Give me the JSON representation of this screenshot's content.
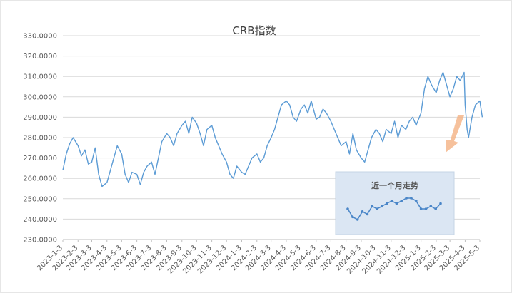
{
  "chart_data": {
    "type": "line",
    "title": "CRB指数",
    "xlabel": "",
    "ylabel": "",
    "ylim": [
      230,
      330
    ],
    "y_ticks": [
      "230.0000",
      "240.0000",
      "250.0000",
      "260.0000",
      "270.0000",
      "280.0000",
      "290.0000",
      "300.0000",
      "310.0000",
      "320.0000",
      "330.0000"
    ],
    "x_ticks": [
      "2023-1-3",
      "2023-2-3",
      "2023-3-3",
      "2023-4-3",
      "2023-5-3",
      "2023-6-3",
      "2023-7-3",
      "2023-8-3",
      "2023-9-3",
      "2023-10-3",
      "2023-11-3",
      "2023-12-3",
      "2024-1-3",
      "2024-2-3",
      "2024-3-3",
      "2024-4-3",
      "2024-5-3",
      "2024-6-3",
      "2024-7-3",
      "2024-8-3",
      "2024-9-3",
      "2024-10-3",
      "2024-11-3",
      "2024-12-3",
      "2025-1-3",
      "2025-2-3",
      "2025-3-3",
      "2025-4-3",
      "2025-5-3"
    ],
    "grid": true,
    "series": [
      {
        "color": "#5b9bd5",
        "x": [
          "2023-1-3",
          "2023-1-10",
          "2023-1-17",
          "2023-1-24",
          "2023-2-3",
          "2023-2-10",
          "2023-2-17",
          "2023-2-24",
          "2023-3-3",
          "2023-3-10",
          "2023-3-17",
          "2023-3-24",
          "2023-4-3",
          "2023-4-10",
          "2023-4-17",
          "2023-4-24",
          "2023-5-3",
          "2023-5-10",
          "2023-5-17",
          "2023-5-24",
          "2023-6-3",
          "2023-6-10",
          "2023-6-17",
          "2023-6-24",
          "2023-7-3",
          "2023-7-10",
          "2023-7-17",
          "2023-7-24",
          "2023-8-3",
          "2023-8-10",
          "2023-8-17",
          "2023-8-24",
          "2023-9-3",
          "2023-9-10",
          "2023-9-17",
          "2023-9-24",
          "2023-10-3",
          "2023-10-10",
          "2023-10-17",
          "2023-10-24",
          "2023-11-3",
          "2023-11-10",
          "2023-11-17",
          "2023-11-24",
          "2023-12-3",
          "2023-12-10",
          "2023-12-17",
          "2023-12-24",
          "2024-1-3",
          "2024-1-10",
          "2024-1-17",
          "2024-1-24",
          "2024-2-3",
          "2024-2-10",
          "2024-2-17",
          "2024-2-24",
          "2024-3-3",
          "2024-3-10",
          "2024-3-17",
          "2024-3-24",
          "2024-4-3",
          "2024-4-10",
          "2024-4-17",
          "2024-4-24",
          "2024-5-3",
          "2024-5-10",
          "2024-5-17",
          "2024-5-24",
          "2024-6-3",
          "2024-6-10",
          "2024-6-17",
          "2024-6-24",
          "2024-7-3",
          "2024-7-10",
          "2024-7-17",
          "2024-7-24",
          "2024-8-3",
          "2024-8-10",
          "2024-8-17",
          "2024-8-24",
          "2024-9-3",
          "2024-9-10",
          "2024-9-17",
          "2024-9-24",
          "2024-10-3",
          "2024-10-10",
          "2024-10-17",
          "2024-10-24",
          "2024-11-3",
          "2024-11-10",
          "2024-11-17",
          "2024-11-24",
          "2024-12-3",
          "2024-12-10",
          "2024-12-17",
          "2024-12-24",
          "2025-1-3",
          "2025-1-10",
          "2025-1-17",
          "2025-1-24",
          "2025-2-3",
          "2025-2-10",
          "2025-2-17",
          "2025-2-24",
          "2025-3-3",
          "2025-3-10",
          "2025-3-17",
          "2025-3-24",
          "2025-4-1",
          "2025-4-3",
          "2025-4-7",
          "2025-4-10",
          "2025-4-17",
          "2025-4-24",
          "2025-5-3",
          "2025-5-8"
        ],
        "values": [
          264,
          272,
          277,
          280,
          276,
          271,
          274,
          267,
          268,
          275,
          262,
          256,
          258,
          264,
          270,
          276,
          272,
          262,
          258,
          263,
          262,
          257,
          263,
          266,
          268,
          262,
          270,
          278,
          282,
          280,
          276,
          282,
          286,
          288,
          282,
          290,
          287,
          282,
          276,
          284,
          286,
          280,
          276,
          272,
          268,
          262,
          260,
          266,
          263,
          262,
          266,
          270,
          272,
          268,
          270,
          276,
          280,
          284,
          290,
          296,
          298,
          296,
          290,
          288,
          294,
          296,
          292,
          298,
          289,
          290,
          294,
          292,
          288,
          284,
          280,
          276,
          278,
          272,
          282,
          274,
          270,
          268,
          274,
          280,
          284,
          282,
          278,
          284,
          282,
          288,
          280,
          286,
          284,
          288,
          290,
          286,
          292,
          304,
          310,
          306,
          302,
          308,
          312,
          306,
          300,
          304,
          310,
          308,
          312,
          296,
          284,
          280,
          290,
          296,
          298,
          290
        ]
      }
    ],
    "inset": {
      "title": "近一个月走势",
      "values": [
        245,
        242,
        241,
        244,
        243,
        246,
        245,
        246,
        247,
        248,
        247,
        248,
        249,
        249,
        248,
        245,
        245,
        246,
        245,
        247
      ]
    },
    "annotations": [
      "arrow pointing from the end of the main series to the inset panel"
    ]
  }
}
